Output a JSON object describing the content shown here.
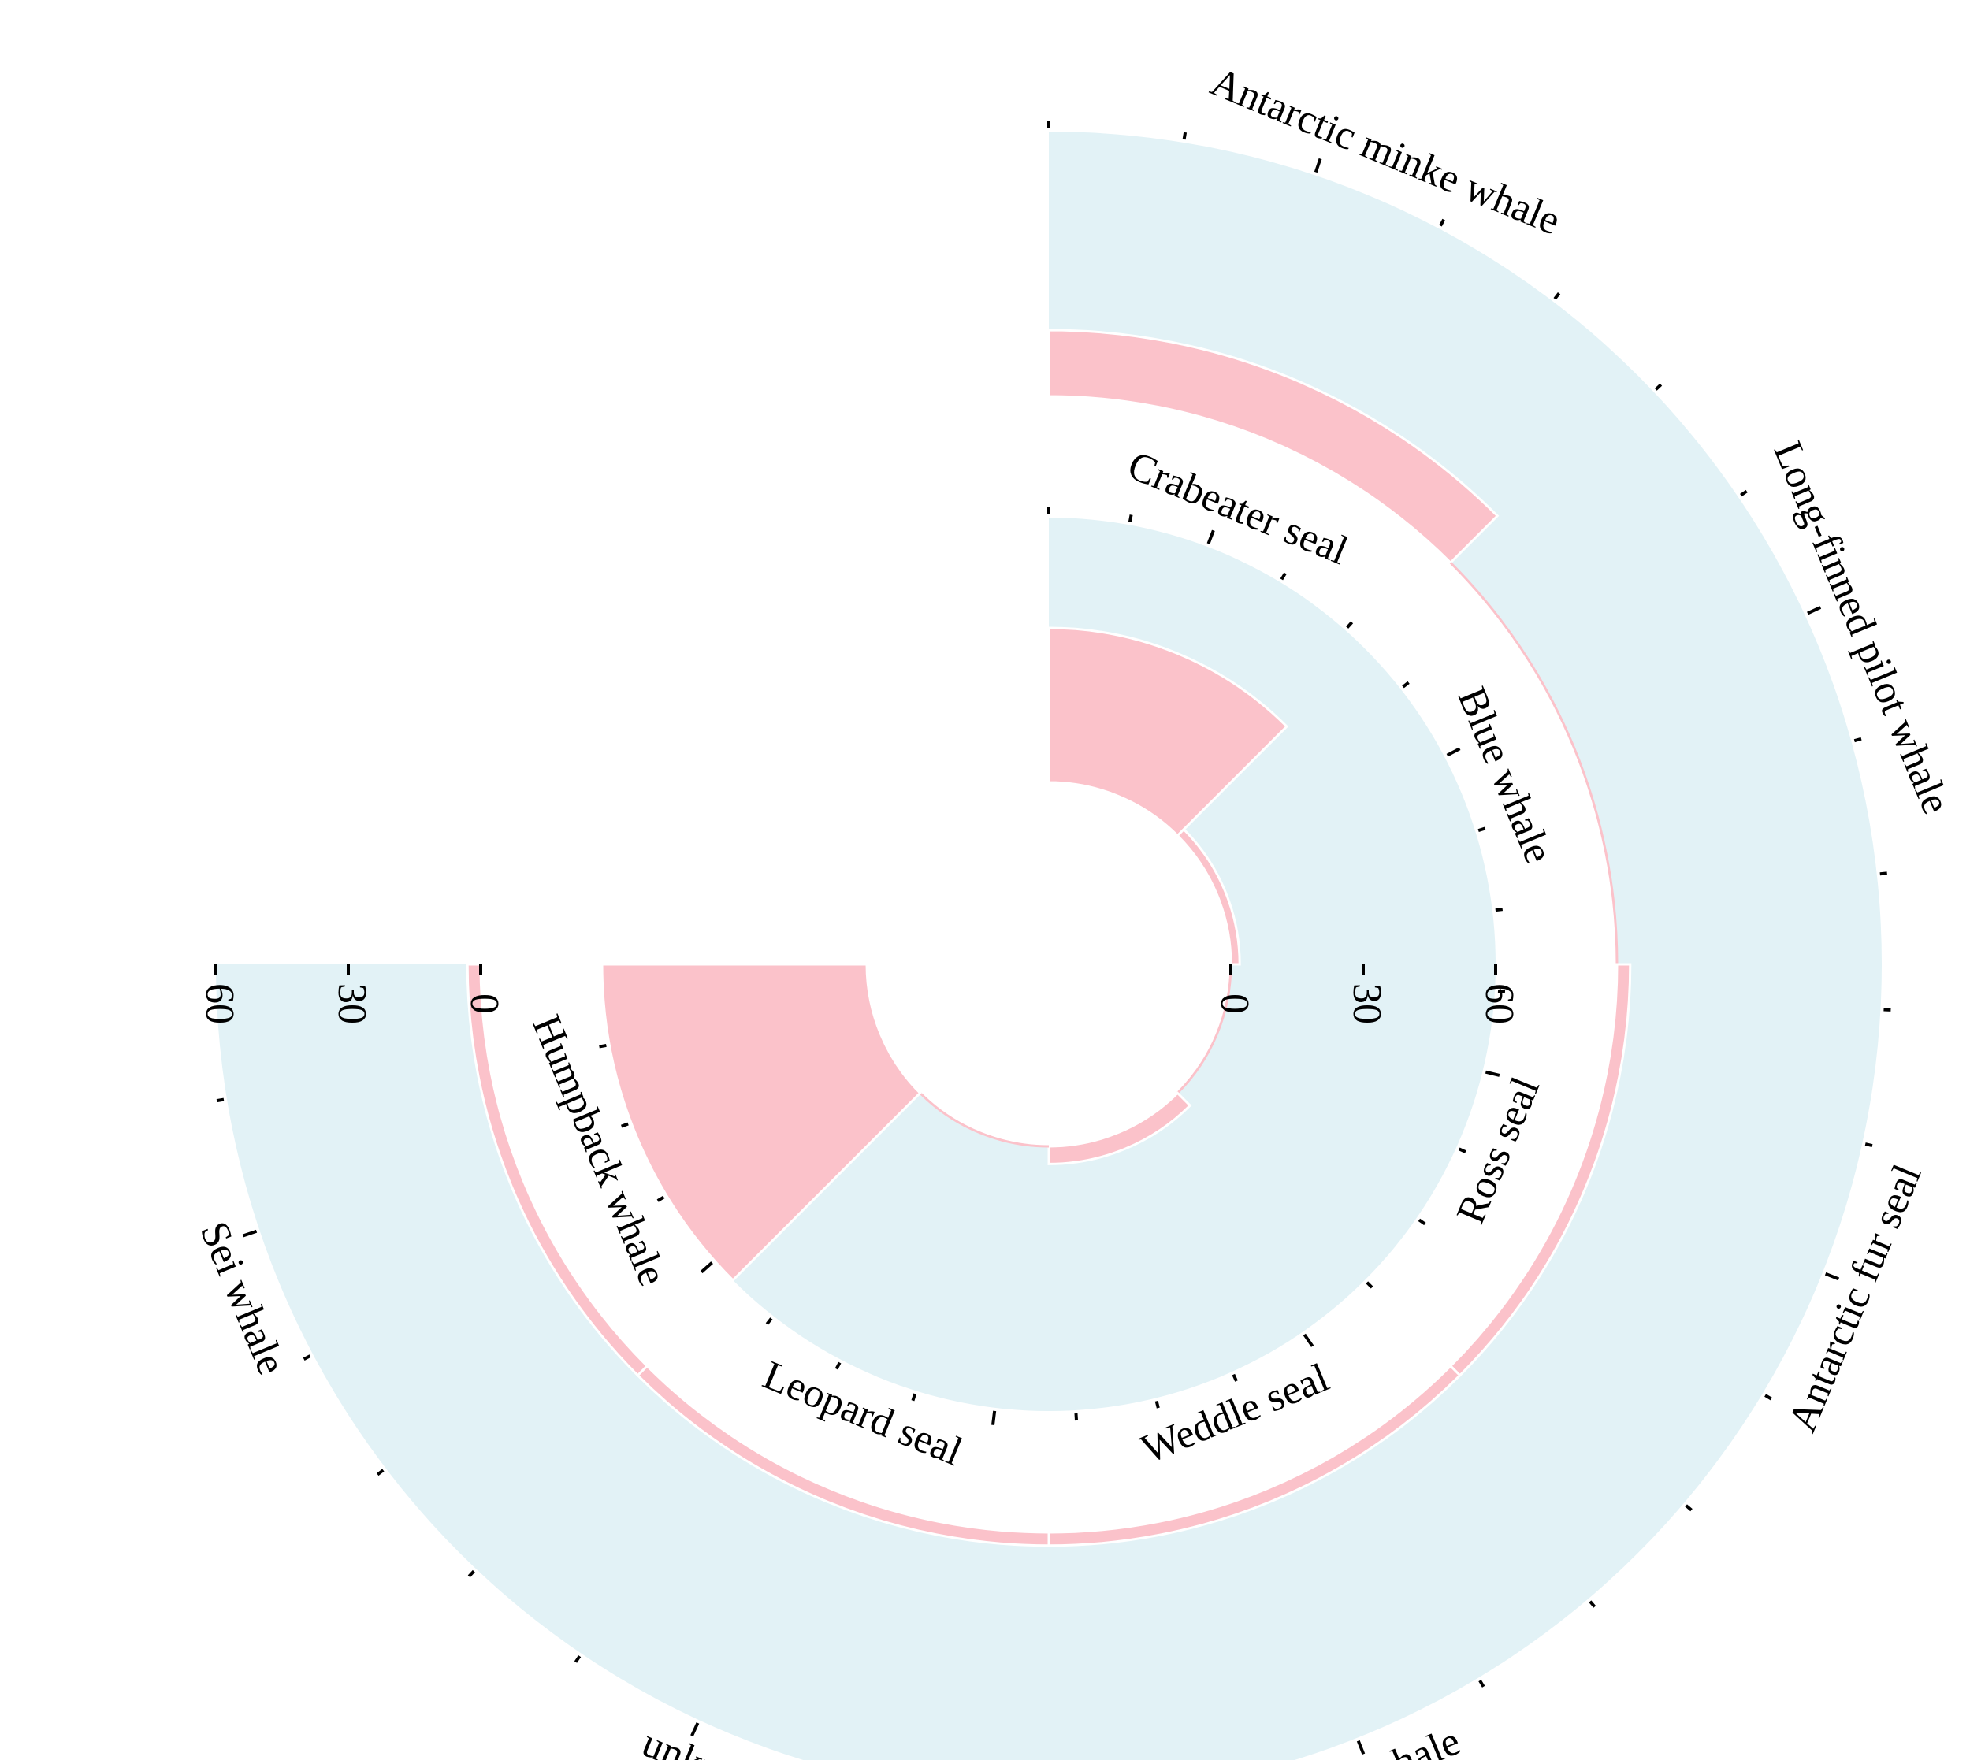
{
  "chart_data": [
    {
      "type": "bar",
      "polar": true,
      "categories": [
        "Crabeater seal",
        "Blue whale",
        "Ross seal",
        "Weddle seal",
        "Leopard seal",
        "Humpback whale"
      ],
      "values": [
        35,
        2,
        0,
        4,
        0,
        60
      ],
      "radial_axis_ticks": [
        "0",
        "30",
        "60"
      ],
      "ylim": [
        0,
        60
      ],
      "colors": {
        "bar": "#FBC2CA",
        "background": "#E2F2F6",
        "outline": "#FBC2CA"
      },
      "title": "",
      "grid": false
    },
    {
      "type": "bar",
      "polar": true,
      "categories": [
        "Antarctic minke whale",
        "Long-finned pilot whale",
        "Antarctic fur seal",
        "Fin whale",
        "unknown",
        "Sei whale"
      ],
      "values": [
        15,
        0,
        3,
        3,
        3,
        3
      ],
      "radial_axis_ticks": [
        "0",
        "30",
        "60"
      ],
      "ylim": [
        0,
        60
      ],
      "colors": {
        "bar": "#FBC2CA",
        "background": "#E2F2F6",
        "outline": "#FBC2CA"
      },
      "title": "",
      "grid": false
    }
  ]
}
